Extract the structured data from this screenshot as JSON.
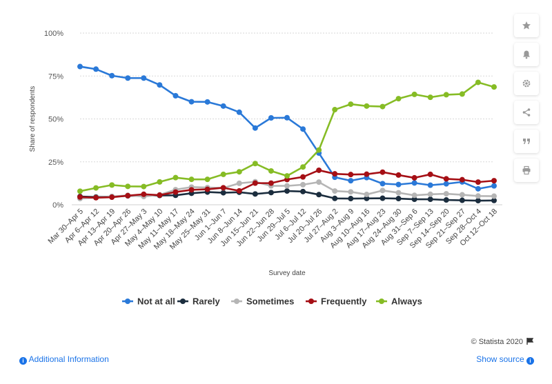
{
  "toolbar": {
    "icons": [
      "star-icon",
      "bell-icon",
      "gear-icon",
      "share-icon",
      "quote-icon",
      "print-icon"
    ]
  },
  "footer": {
    "copyright": "© Statista 2020",
    "additional_info": "Additional Information",
    "show_source": "Show source"
  },
  "chart_data": {
    "type": "line",
    "xlabel": "Survey date",
    "ylabel": "Share of respondents",
    "ylim": [
      0,
      100
    ],
    "yticks": [
      "0%",
      "25%",
      "50%",
      "75%",
      "100%"
    ],
    "grid": true,
    "legend_position": "bottom",
    "categories": [
      "Mar 30–Apr 5",
      "Apr 6–Apr 12",
      "Apr 13–Apr 19",
      "Apr 20–Apr 26",
      "Apr 27–May 3",
      "May 4–May 10",
      "May 11–May 17",
      "May 18–May 24",
      "May 25–May 31",
      "Jun 1–Jun 7",
      "Jun 8–Jun 14",
      "Jun 15–Jun 21",
      "Jun 22–Jun 28",
      "Jun 29–Jul 5",
      "Jul 6–Jul 12",
      "Jul 20–Jul 26",
      "Jul 27–Aug 2",
      "Aug 3–Aug 9",
      "Aug 10–Aug 16",
      "Aug 17–Aug 23",
      "Aug 24–Aug 30",
      "Aug 31–Sep 6",
      "Sep 7–Sep 13",
      "Sep 14–Sep 20",
      "Sep 21–Sep 27",
      "Sep 28–Oct 4",
      "Oct 12–Oct 18"
    ],
    "series": [
      {
        "name": "Not at all",
        "color": "#2a79d8",
        "values": [
          80.5,
          79,
          75.2,
          73.8,
          73.8,
          69.8,
          63.5,
          60,
          59.9,
          57.5,
          53.9,
          44.7,
          50.6,
          50.7,
          44.1,
          30.1,
          16,
          14,
          15.8,
          12.3,
          11.8,
          12.7,
          11.4,
          12.2,
          13.3,
          9.3,
          11
        ]
      },
      {
        "name": "Rarely",
        "color": "#1b2d3e",
        "values": [
          4.8,
          4.5,
          4.8,
          5.2,
          5.3,
          5.4,
          5.5,
          6.7,
          7.4,
          7,
          7.3,
          6.3,
          7.1,
          8,
          7.7,
          5.9,
          3.7,
          3.6,
          3.7,
          3.8,
          3.6,
          3.2,
          3.2,
          2.8,
          2.6,
          2.4,
          2.5
        ]
      },
      {
        "name": "Sometimes",
        "color": "#b5b5b5",
        "values": [
          3.6,
          4.2,
          4.8,
          5.5,
          4.8,
          5.8,
          8.8,
          10.3,
          10,
          9.8,
          12.5,
          13.4,
          11,
          11,
          11.7,
          13.2,
          8,
          7.5,
          6,
          8.3,
          7,
          5.5,
          6.1,
          6.4,
          5.8,
          5.1,
          5
        ]
      },
      {
        "name": "Frequently",
        "color": "#a50f15",
        "values": [
          4.5,
          4.1,
          4.4,
          5.3,
          6.1,
          5.6,
          7.4,
          8.7,
          9,
          9.9,
          8.1,
          12.6,
          12.6,
          14.7,
          16.2,
          20.1,
          18,
          17.6,
          17.8,
          19,
          17.3,
          15.7,
          17.7,
          15.1,
          14.6,
          13.2,
          14
        ]
      },
      {
        "name": "Always",
        "color": "#86bc25",
        "values": [
          7.9,
          9.8,
          11.5,
          10.7,
          10.6,
          13.3,
          15.8,
          14.8,
          14.8,
          17.7,
          19.2,
          24,
          19.7,
          16.8,
          22,
          31.9,
          55.4,
          58.6,
          57.5,
          57.2,
          61.8,
          64.3,
          62.6,
          64.1,
          64.5,
          71.3,
          68.6
        ]
      }
    ]
  }
}
